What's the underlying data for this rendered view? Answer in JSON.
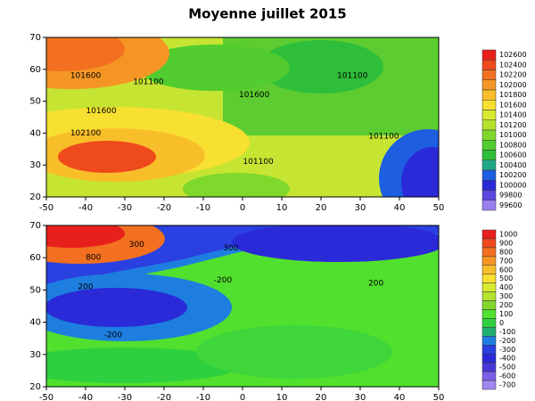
{
  "title": "Moyenne juillet 2015",
  "panels": [
    {
      "xlim": [
        -50,
        50
      ],
      "ylim": [
        20,
        70
      ],
      "xticks": [
        -50,
        -40,
        -30,
        -20,
        -10,
        0,
        10,
        20,
        30,
        40,
        50
      ],
      "yticks": [
        20,
        30,
        40,
        50,
        60,
        70
      ],
      "colorbar": {
        "levels": [
          102600,
          102400,
          102200,
          102000,
          101800,
          101600,
          101400,
          101200,
          101000,
          100800,
          100600,
          100400,
          100200,
          100000,
          99800,
          99600
        ],
        "colors": [
          "#e8201c",
          "#ee4a1c",
          "#f27020",
          "#f59624",
          "#f8be2a",
          "#f7e030",
          "#d8ea30",
          "#b4e22e",
          "#80d82c",
          "#52cc2e",
          "#2fbe3a",
          "#1fa888",
          "#1e5ee0",
          "#2a2ad8",
          "#5a48e0",
          "#9a80f0"
        ]
      },
      "contour_labels": [
        {
          "text": "101600",
          "lon": -40,
          "lat": 58
        },
        {
          "text": "101100",
          "lon": -24,
          "lat": 56
        },
        {
          "text": "101600",
          "lon": -36,
          "lat": 47
        },
        {
          "text": "102100",
          "lon": -40,
          "lat": 40
        },
        {
          "text": "101600",
          "lon": 3,
          "lat": 52
        },
        {
          "text": "101100",
          "lon": 28,
          "lat": 58
        },
        {
          "text": "101100",
          "lon": 36,
          "lat": 39
        },
        {
          "text": "101100",
          "lon": 4,
          "lat": 31
        }
      ]
    },
    {
      "xlim": [
        -50,
        50
      ],
      "ylim": [
        20,
        70
      ],
      "xticks": [
        -50,
        -40,
        -30,
        -20,
        -10,
        0,
        10,
        20,
        30,
        40,
        50
      ],
      "yticks": [
        20,
        30,
        40,
        50,
        60,
        70
      ],
      "colorbar": {
        "levels": [
          1000,
          900,
          800,
          700,
          600,
          500,
          400,
          300,
          200,
          100,
          0,
          -100,
          -200,
          -300,
          -400,
          -500,
          -600,
          -700
        ],
        "colors": [
          "#e8201c",
          "#ee4a1c",
          "#f27020",
          "#f59624",
          "#f8be2a",
          "#f7e030",
          "#d8ea30",
          "#b4e22e",
          "#80d82c",
          "#52e02e",
          "#2fd040",
          "#1fb070",
          "#1e7ee0",
          "#2a40e0",
          "#2a2ad8",
          "#4a38d8",
          "#7a60e8",
          "#a088f0"
        ]
      },
      "contour_labels": [
        {
          "text": "800",
          "lon": -38,
          "lat": 60
        },
        {
          "text": "300",
          "lon": -27,
          "lat": 64
        },
        {
          "text": "300",
          "lon": -3,
          "lat": 63
        },
        {
          "text": "200",
          "lon": -40,
          "lat": 51
        },
        {
          "text": "-200",
          "lon": -33,
          "lat": 36
        },
        {
          "text": "-200",
          "lon": -5,
          "lat": 53
        },
        {
          "text": "200",
          "lon": 34,
          "lat": 52
        }
      ]
    }
  ]
}
